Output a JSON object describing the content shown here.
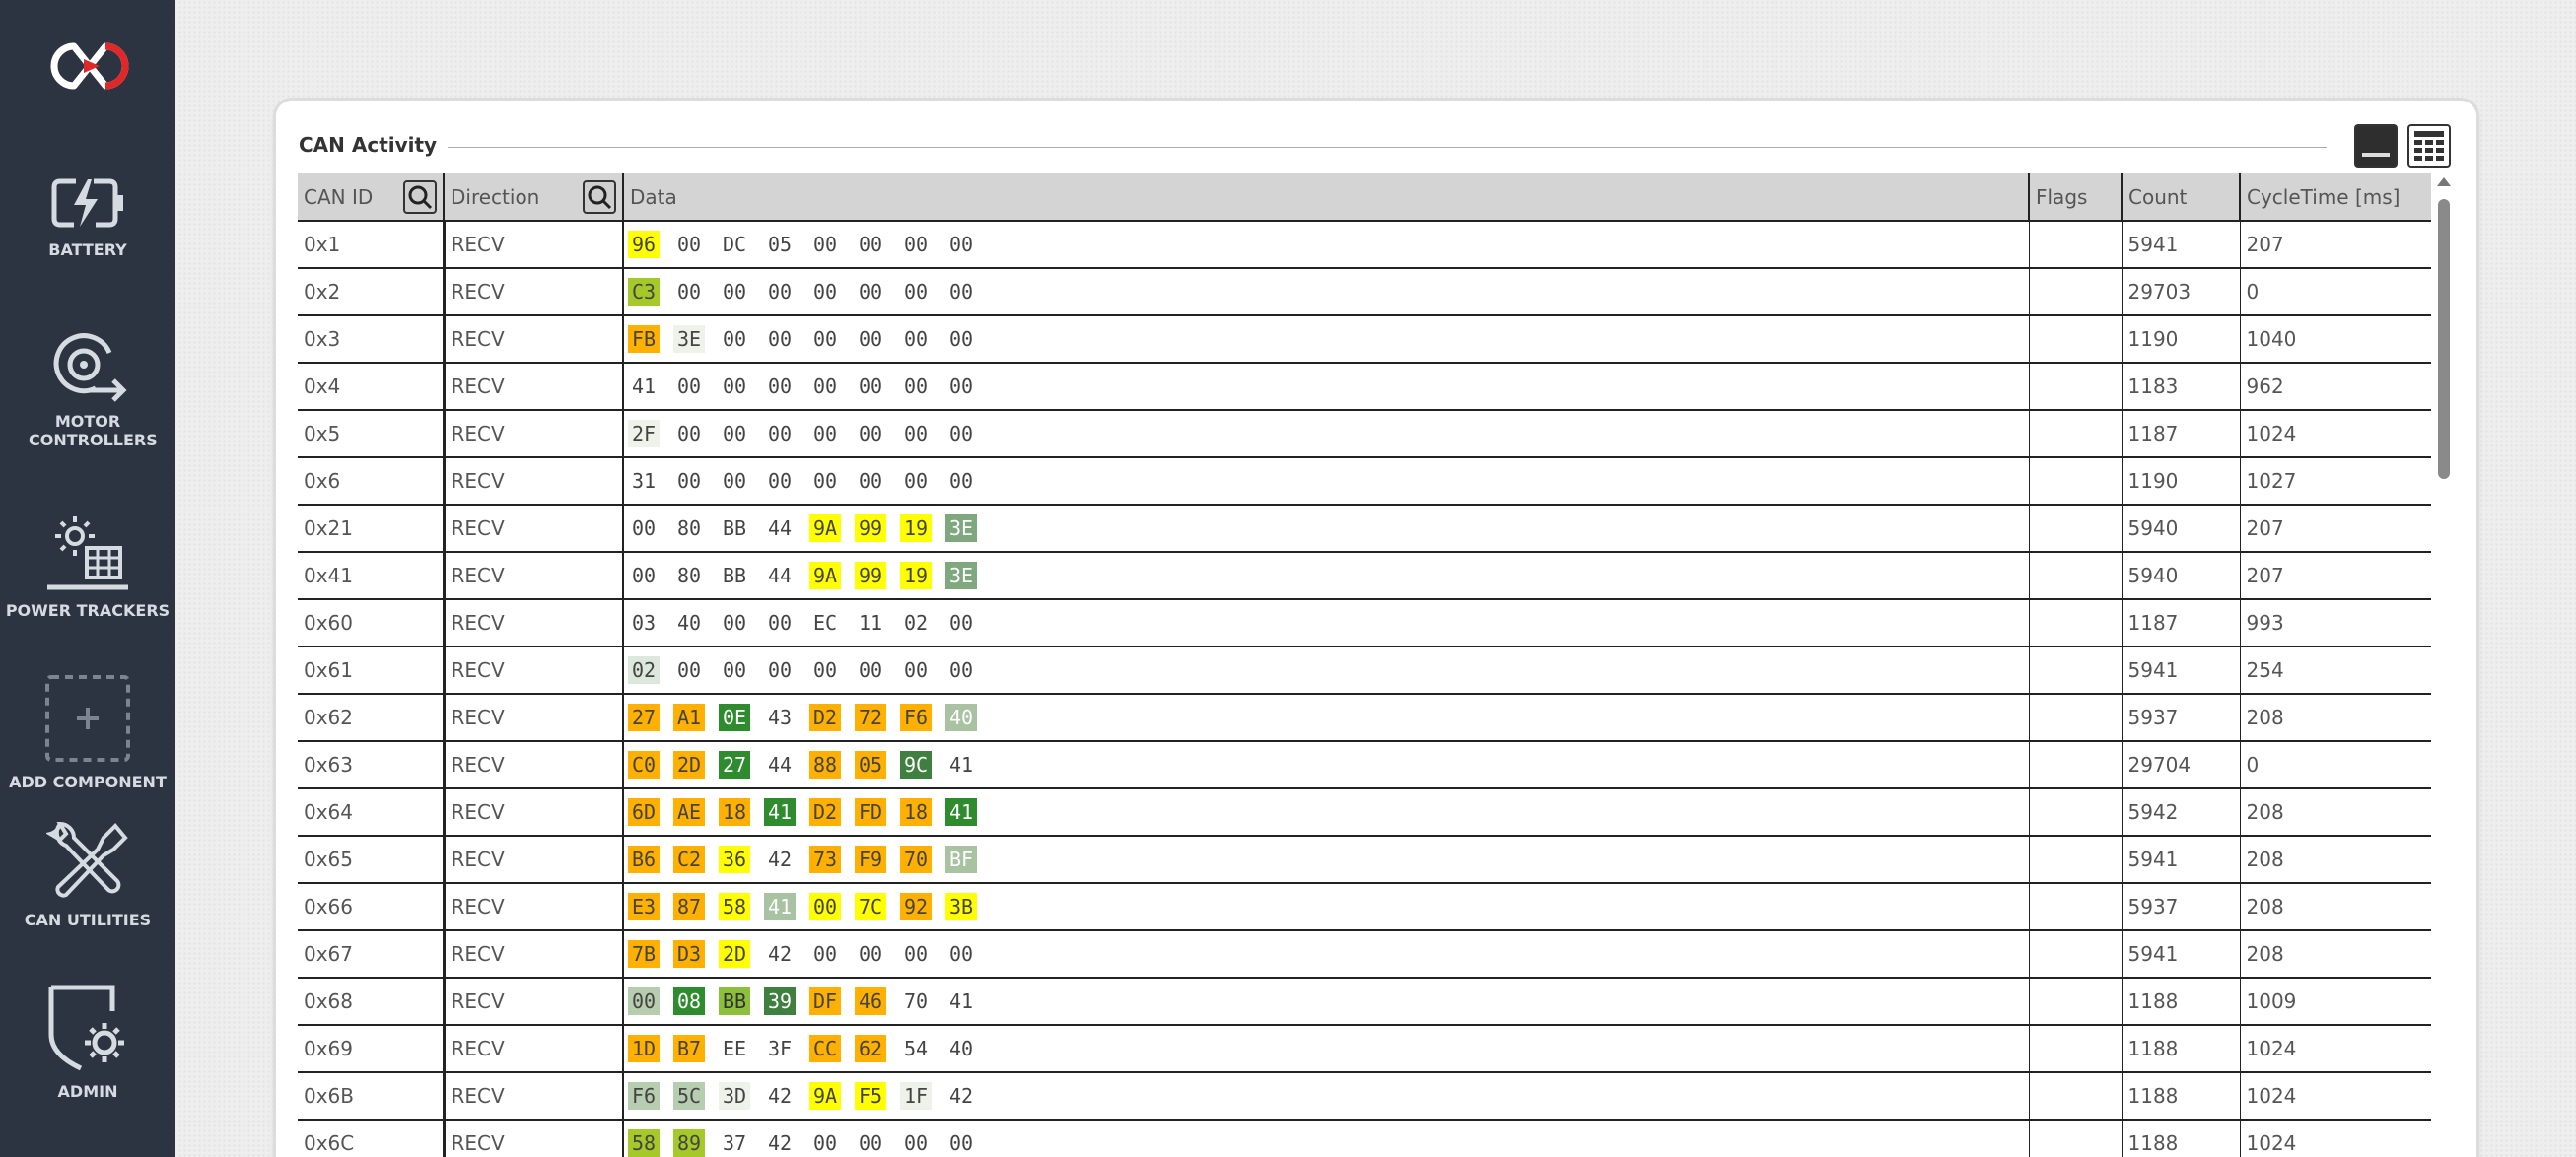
{
  "sidebar": {
    "items": [
      {
        "label": "BATTERY",
        "icon": "battery-charging-icon"
      },
      {
        "label": "MOTOR CONTROLLERS",
        "icon": "motor-icon"
      },
      {
        "label": "POWER TRACKERS",
        "icon": "solar-panel-icon"
      },
      {
        "label": "ADD COMPONENT",
        "icon": "add-icon"
      },
      {
        "label": "CAN UTILITIES",
        "icon": "tools-icon"
      },
      {
        "label": "ADMIN",
        "icon": "shield-gear-icon"
      }
    ]
  },
  "panel": {
    "title": "CAN Activity",
    "columns": [
      "CAN ID",
      "Direction",
      "Data",
      "Flags",
      "Count",
      "CycleTime [ms]"
    ]
  },
  "colors": {
    "sidebar_bg": "#2b3440",
    "logo_accent": "#e02828",
    "heat_yellow": "#ffff00",
    "heat_orange": "#ffb000",
    "heat_green": "#2e8b2e",
    "heat_olive": "#9acd32",
    "heat_sage": "#8fbc8f",
    "heat_pale": "#e6ecdf"
  },
  "rows": [
    {
      "id": "0x1",
      "dir": "RECV",
      "flags": "",
      "count": "5941",
      "cycle": "207",
      "bytes": [
        [
          "96",
          "y"
        ],
        [
          "00",
          ""
        ],
        [
          "DC",
          ""
        ],
        [
          "05",
          ""
        ],
        [
          "00",
          ""
        ],
        [
          "00",
          ""
        ],
        [
          "00",
          ""
        ],
        [
          "00",
          ""
        ]
      ]
    },
    {
      "id": "0x2",
      "dir": "RECV",
      "flags": "",
      "count": "29703",
      "cycle": "0",
      "bytes": [
        [
          "C3",
          "ol"
        ],
        [
          "00",
          ""
        ],
        [
          "00",
          ""
        ],
        [
          "00",
          ""
        ],
        [
          "00",
          ""
        ],
        [
          "00",
          ""
        ],
        [
          "00",
          ""
        ],
        [
          "00",
          ""
        ]
      ]
    },
    {
      "id": "0x3",
      "dir": "RECV",
      "flags": "",
      "count": "1190",
      "cycle": "1040",
      "bytes": [
        [
          "FB",
          "o"
        ],
        [
          "3E",
          "p"
        ],
        [
          "00",
          ""
        ],
        [
          "00",
          ""
        ],
        [
          "00",
          ""
        ],
        [
          "00",
          ""
        ],
        [
          "00",
          ""
        ],
        [
          "00",
          ""
        ]
      ]
    },
    {
      "id": "0x4",
      "dir": "RECV",
      "flags": "",
      "count": "1183",
      "cycle": "962",
      "bytes": [
        [
          "41",
          ""
        ],
        [
          "00",
          ""
        ],
        [
          "00",
          ""
        ],
        [
          "00",
          ""
        ],
        [
          "00",
          ""
        ],
        [
          "00",
          ""
        ],
        [
          "00",
          ""
        ],
        [
          "00",
          ""
        ]
      ]
    },
    {
      "id": "0x5",
      "dir": "RECV",
      "flags": "",
      "count": "1187",
      "cycle": "1024",
      "bytes": [
        [
          "2F",
          "p"
        ],
        [
          "00",
          ""
        ],
        [
          "00",
          ""
        ],
        [
          "00",
          ""
        ],
        [
          "00",
          ""
        ],
        [
          "00",
          ""
        ],
        [
          "00",
          ""
        ],
        [
          "00",
          ""
        ]
      ]
    },
    {
      "id": "0x6",
      "dir": "RECV",
      "flags": "",
      "count": "1190",
      "cycle": "1027",
      "bytes": [
        [
          "31",
          ""
        ],
        [
          "00",
          ""
        ],
        [
          "00",
          ""
        ],
        [
          "00",
          ""
        ],
        [
          "00",
          ""
        ],
        [
          "00",
          ""
        ],
        [
          "00",
          ""
        ],
        [
          "00",
          ""
        ]
      ]
    },
    {
      "id": "0x21",
      "dir": "RECV",
      "flags": "",
      "count": "5940",
      "cycle": "207",
      "bytes": [
        [
          "00",
          ""
        ],
        [
          "80",
          ""
        ],
        [
          "BB",
          ""
        ],
        [
          "44",
          ""
        ],
        [
          "9A",
          "y"
        ],
        [
          "99",
          "y"
        ],
        [
          "19",
          "y"
        ],
        [
          "3E",
          "s"
        ]
      ]
    },
    {
      "id": "0x41",
      "dir": "RECV",
      "flags": "",
      "count": "5940",
      "cycle": "207",
      "bytes": [
        [
          "00",
          ""
        ],
        [
          "80",
          ""
        ],
        [
          "BB",
          ""
        ],
        [
          "44",
          ""
        ],
        [
          "9A",
          "y"
        ],
        [
          "99",
          "y"
        ],
        [
          "19",
          "y"
        ],
        [
          "3E",
          "s"
        ]
      ]
    },
    {
      "id": "0x60",
      "dir": "RECV",
      "flags": "",
      "count": "1187",
      "cycle": "993",
      "bytes": [
        [
          "03",
          ""
        ],
        [
          "40",
          ""
        ],
        [
          "00",
          ""
        ],
        [
          "00",
          ""
        ],
        [
          "EC",
          ""
        ],
        [
          "11",
          ""
        ],
        [
          "02",
          ""
        ],
        [
          "00",
          ""
        ]
      ]
    },
    {
      "id": "0x61",
      "dir": "RECV",
      "flags": "",
      "count": "5941",
      "cycle": "254",
      "bytes": [
        [
          "02",
          "p2"
        ],
        [
          "00",
          ""
        ],
        [
          "00",
          ""
        ],
        [
          "00",
          ""
        ],
        [
          "00",
          ""
        ],
        [
          "00",
          ""
        ],
        [
          "00",
          ""
        ],
        [
          "00",
          ""
        ]
      ]
    },
    {
      "id": "0x62",
      "dir": "RECV",
      "flags": "",
      "count": "5937",
      "cycle": "208",
      "bytes": [
        [
          "27",
          "o"
        ],
        [
          "A1",
          "o"
        ],
        [
          "0E",
          "g"
        ],
        [
          "43",
          ""
        ],
        [
          "D2",
          "o"
        ],
        [
          "72",
          "o"
        ],
        [
          "F6",
          "o"
        ],
        [
          "40",
          "ls"
        ]
      ]
    },
    {
      "id": "0x63",
      "dir": "RECV",
      "flags": "",
      "count": "29704",
      "cycle": "0",
      "bytes": [
        [
          "C0",
          "o"
        ],
        [
          "2D",
          "o"
        ],
        [
          "27",
          "g"
        ],
        [
          "44",
          ""
        ],
        [
          "88",
          "o"
        ],
        [
          "05",
          "o"
        ],
        [
          "9C",
          "g2"
        ],
        [
          "41",
          ""
        ]
      ]
    },
    {
      "id": "0x64",
      "dir": "RECV",
      "flags": "",
      "count": "5942",
      "cycle": "208",
      "bytes": [
        [
          "6D",
          "o"
        ],
        [
          "AE",
          "o"
        ],
        [
          "18",
          "o"
        ],
        [
          "41",
          "g"
        ],
        [
          "D2",
          "o"
        ],
        [
          "FD",
          "o"
        ],
        [
          "18",
          "o"
        ],
        [
          "41",
          "g"
        ]
      ]
    },
    {
      "id": "0x65",
      "dir": "RECV",
      "flags": "",
      "count": "5941",
      "cycle": "208",
      "bytes": [
        [
          "B6",
          "o"
        ],
        [
          "C2",
          "o"
        ],
        [
          "36",
          "y"
        ],
        [
          "42",
          ""
        ],
        [
          "73",
          "o"
        ],
        [
          "F9",
          "o"
        ],
        [
          "70",
          "o"
        ],
        [
          "BF",
          "ls"
        ]
      ]
    },
    {
      "id": "0x66",
      "dir": "RECV",
      "flags": "",
      "count": "5937",
      "cycle": "208",
      "bytes": [
        [
          "E3",
          "o"
        ],
        [
          "87",
          "o"
        ],
        [
          "58",
          "y"
        ],
        [
          "41",
          "ls"
        ],
        [
          "00",
          "y"
        ],
        [
          "7C",
          "y"
        ],
        [
          "92",
          "o"
        ],
        [
          "3B",
          "y"
        ]
      ]
    },
    {
      "id": "0x67",
      "dir": "RECV",
      "flags": "",
      "count": "5941",
      "cycle": "208",
      "bytes": [
        [
          "7B",
          "o"
        ],
        [
          "D3",
          "o"
        ],
        [
          "2D",
          "y"
        ],
        [
          "42",
          ""
        ],
        [
          "00",
          ""
        ],
        [
          "00",
          ""
        ],
        [
          "00",
          ""
        ],
        [
          "00",
          ""
        ]
      ]
    },
    {
      "id": "0x68",
      "dir": "RECV",
      "flags": "",
      "count": "1188",
      "cycle": "1009",
      "bytes": [
        [
          "00",
          "ls2"
        ],
        [
          "08",
          "g"
        ],
        [
          "BB",
          "ol2"
        ],
        [
          "39",
          "g2"
        ],
        [
          "DF",
          "o"
        ],
        [
          "46",
          "o"
        ],
        [
          "70",
          ""
        ],
        [
          "41",
          ""
        ]
      ]
    },
    {
      "id": "0x69",
      "dir": "RECV",
      "flags": "",
      "count": "1188",
      "cycle": "1024",
      "bytes": [
        [
          "1D",
          "o"
        ],
        [
          "B7",
          "o"
        ],
        [
          "EE",
          ""
        ],
        [
          "3F",
          ""
        ],
        [
          "CC",
          "o"
        ],
        [
          "62",
          "o"
        ],
        [
          "54",
          ""
        ],
        [
          "40",
          ""
        ]
      ]
    },
    {
      "id": "0x6B",
      "dir": "RECV",
      "flags": "",
      "count": "1188",
      "cycle": "1024",
      "bytes": [
        [
          "F6",
          "ls2"
        ],
        [
          "5C",
          "ls2"
        ],
        [
          "3D",
          "p"
        ],
        [
          "42",
          ""
        ],
        [
          "9A",
          "y"
        ],
        [
          "F5",
          "y"
        ],
        [
          "1F",
          "p"
        ],
        [
          "42",
          ""
        ]
      ]
    },
    {
      "id": "0x6C",
      "dir": "RECV",
      "flags": "",
      "count": "1188",
      "cycle": "1024",
      "bytes": [
        [
          "58",
          "ol"
        ],
        [
          "89",
          "ol"
        ],
        [
          "37",
          ""
        ],
        [
          "42",
          ""
        ],
        [
          "00",
          ""
        ],
        [
          "00",
          ""
        ],
        [
          "00",
          ""
        ],
        [
          "00",
          ""
        ]
      ]
    }
  ]
}
